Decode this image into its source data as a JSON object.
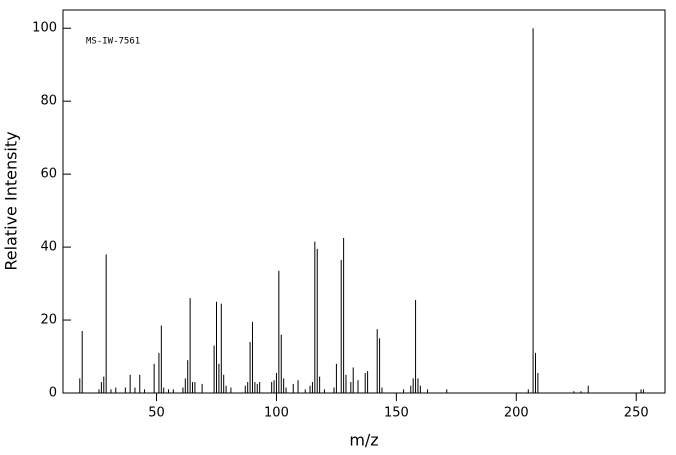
{
  "chart_data": {
    "type": "bar",
    "annotation": "MS-IW-7561",
    "x_label": "m/z",
    "y_label": "Relative Intensity",
    "x": [
      18,
      19,
      26,
      27,
      28,
      29,
      31,
      33,
      37,
      39,
      41,
      43,
      45,
      49,
      51,
      52,
      53,
      55,
      57,
      61,
      62,
      63,
      64,
      65,
      66,
      69,
      74,
      75,
      76,
      77,
      78,
      79,
      81,
      87,
      88,
      89,
      90,
      91,
      92,
      93,
      98,
      99,
      100,
      101,
      102,
      103,
      104,
      107,
      109,
      112,
      114,
      115,
      116,
      117,
      118,
      120,
      124,
      125,
      127,
      128,
      129,
      131,
      132,
      134,
      137,
      138,
      142,
      143,
      144,
      153,
      156,
      157,
      158,
      159,
      160,
      163,
      171,
      205,
      207,
      208,
      209,
      224,
      227,
      230,
      252,
      253
    ],
    "values": [
      4,
      17,
      1,
      3,
      4.5,
      38,
      1,
      1.5,
      1.5,
      5,
      1.5,
      5,
      1,
      8,
      11,
      18.5,
      1.5,
      1,
      1,
      1.5,
      4,
      9,
      26,
      3,
      3,
      2.5,
      13,
      25,
      8,
      24.5,
      5,
      2,
      1.5,
      2,
      3,
      14,
      19.5,
      3,
      2.5,
      3,
      3,
      3.5,
      5.5,
      33.5,
      16,
      4,
      1.5,
      2.5,
      3.5,
      1,
      2,
      3,
      41.5,
      39.5,
      4.5,
      1,
      1.5,
      8,
      36.5,
      42.5,
      5,
      3,
      7,
      3.5,
      5.5,
      6,
      17.5,
      15,
      1.5,
      1,
      2,
      4,
      25.5,
      4,
      2,
      1,
      1,
      1,
      100,
      11,
      5.5,
      0.5,
      0.5,
      2,
      1,
      1
    ],
    "color": "#000000",
    "xlim": [
      11,
      262
    ],
    "ylim": [
      0,
      105
    ],
    "xticks": [
      50,
      100,
      150,
      200,
      250
    ],
    "yticks": [
      0,
      20,
      40,
      60,
      80,
      100
    ]
  }
}
